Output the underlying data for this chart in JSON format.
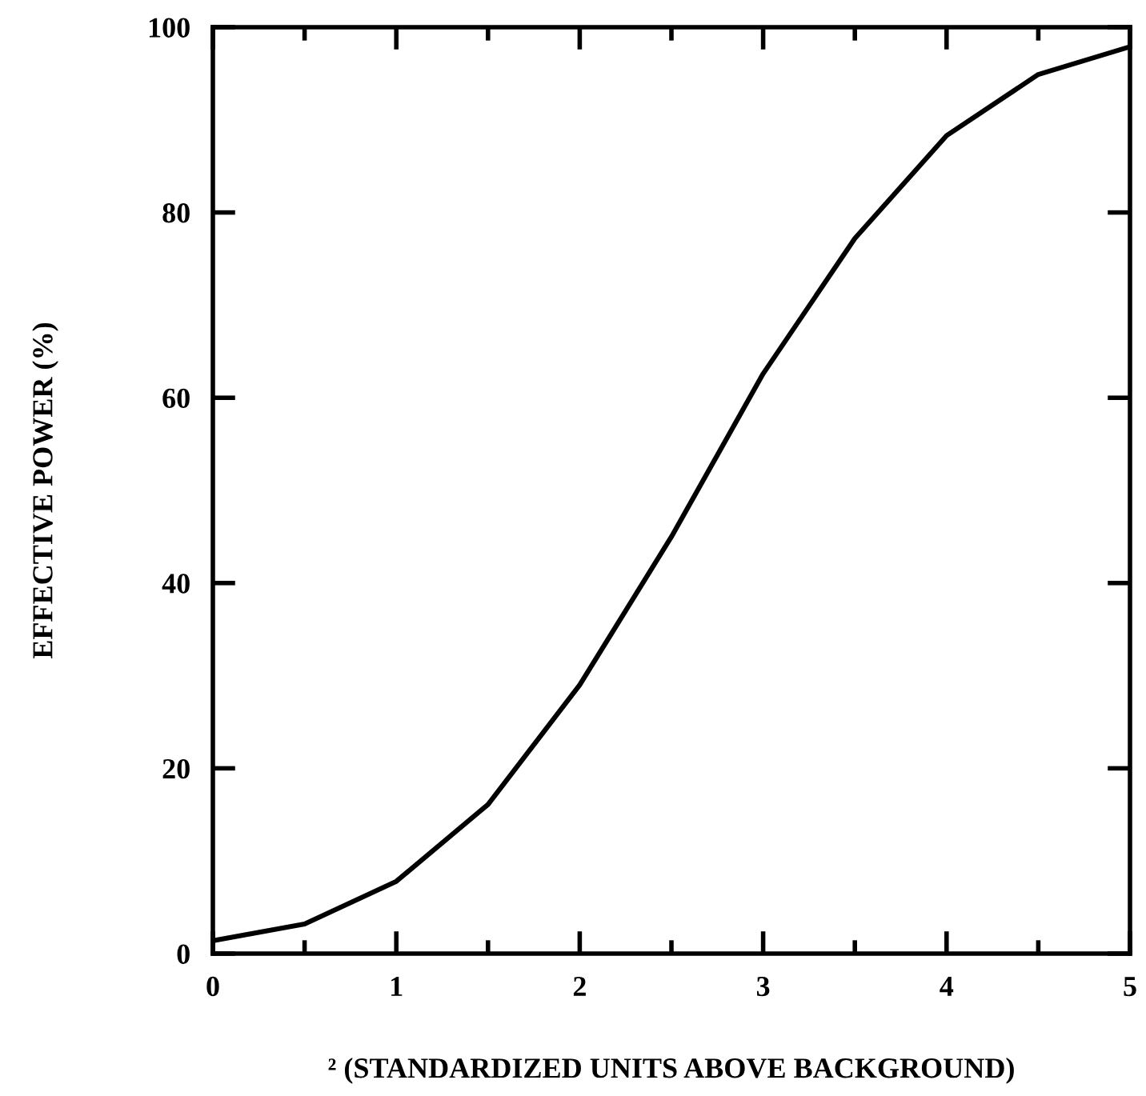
{
  "chart_data": {
    "type": "line",
    "xlabel": "² (STANDARDIZED UNITS ABOVE BACKGROUND)",
    "ylabel": "EFFECTIVE POWER (%)",
    "x": [
      0,
      0.5,
      1,
      1.5,
      2,
      2.5,
      3,
      3.5,
      4,
      4.5,
      5
    ],
    "series": [
      {
        "color": "#000000",
        "values": [
          1.4,
          3.2,
          7.8,
          16.1,
          29.0,
          45.0,
          62.6,
          77.2,
          88.3,
          94.9,
          97.9
        ]
      }
    ],
    "xlim": [
      0,
      5
    ],
    "ylim": [
      0,
      100
    ],
    "xticks": [
      0,
      {
        "value": 0.5,
        "label": null
      },
      1,
      {
        "value": 1.5,
        "label": null
      },
      2,
      {
        "value": 2.5,
        "label": null
      },
      3,
      {
        "value": 3.5,
        "label": null
      },
      4,
      {
        "value": 4.5,
        "label": null
      },
      5
    ],
    "yticks": [
      0,
      20,
      40,
      60,
      80,
      100
    ],
    "grid": false,
    "legend": false,
    "marker": "none",
    "line_style": "solid"
  }
}
